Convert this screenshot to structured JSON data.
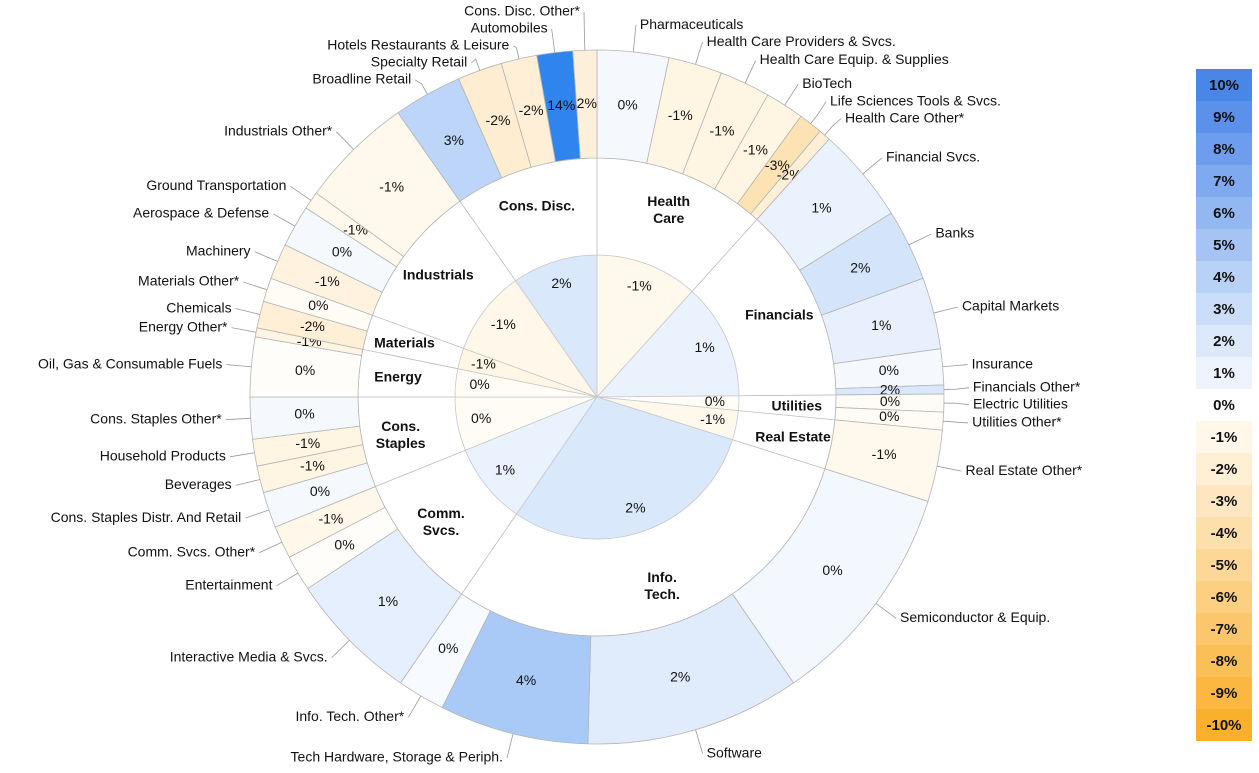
{
  "chart_data": {
    "type": "sunburst",
    "sectors": [
      {
        "name": "Health\nCare",
        "value": -1,
        "value_label": "-1%",
        "color": "#fff8ec",
        "industries": [
          {
            "name": "Pharmaceuticals",
            "value": 0,
            "value_label": "0%",
            "weight": 12,
            "color": "#f5f9fe"
          },
          {
            "name": "Health Care Providers & Svcs.",
            "value": -1,
            "value_label": "-1%",
            "weight": 9,
            "color": "#fff5e3"
          },
          {
            "name": "Health Care Equip. & Supplies",
            "value": -1,
            "value_label": "-1%",
            "weight": 8.5,
            "color": "#fff5e3"
          },
          {
            "name": "BioTech",
            "value": -1,
            "value_label": "-1%",
            "weight": 6.5,
            "color": "#fff5e3"
          },
          {
            "name": "Life Sciences Tools & Svcs.",
            "value": -3,
            "value_label": "-3%",
            "weight": 4,
            "color": "#fde3b3"
          },
          {
            "name": "Health Care Other*",
            "value": -2,
            "value_label": "-2%",
            "weight": 2,
            "color": "#feefd6"
          }
        ]
      },
      {
        "name": "Financials",
        "value": 1,
        "value_label": "1%",
        "color": "#eaf2fd",
        "industries": [
          {
            "name": "Financial Svcs.",
            "value": 1,
            "value_label": "1%",
            "weight": 16,
            "color": "#eaf2fd"
          },
          {
            "name": "Banks",
            "value": 2,
            "value_label": "2%",
            "weight": 12,
            "color": "#d3e4fb"
          },
          {
            "name": "Capital Markets",
            "value": 1,
            "value_label": "1%",
            "weight": 12,
            "color": "#e8f0fd"
          },
          {
            "name": "Insurance",
            "value": 0,
            "value_label": "0%",
            "weight": 6,
            "color": "#f5f9fe"
          },
          {
            "name": "Financials Other*",
            "value": 2,
            "value_label": "2%",
            "weight": 1.5,
            "color": "#dae8fc"
          }
        ]
      },
      {
        "name": "Utilities",
        "value": 0,
        "value_label": "0%",
        "color": "#fffdf8",
        "industries": [
          {
            "name": "Electric Utilities",
            "value": 0,
            "value_label": "0%",
            "weight": 3,
            "color": "#fffcf6"
          },
          {
            "name": "Utilities Other*",
            "value": 0,
            "value_label": "0%",
            "weight": 3,
            "color": "#fffcf6"
          }
        ]
      },
      {
        "name": "Real Estate",
        "value": -1,
        "value_label": "-1%",
        "color": "#fff8ec",
        "industries": [
          {
            "name": "Real Estate Other*",
            "value": -1,
            "value_label": "-1%",
            "weight": 12,
            "color": "#fff8ec"
          }
        ]
      },
      {
        "name": "Info.\nTech.",
        "value": 2,
        "value_label": "2%",
        "color": "#dae8fc",
        "industries": [
          {
            "name": "Semiconductor & Equip.",
            "value": 0,
            "value_label": "0%",
            "weight": 38,
            "color": "#f3f7fe"
          },
          {
            "name": "Software",
            "value": 2,
            "value_label": "2%",
            "weight": 36,
            "color": "#e0ebfc"
          },
          {
            "name": "Tech Hardware, Storage & Periph.",
            "value": 4,
            "value_label": "4%",
            "weight": 25,
            "color": "#a9c9f7"
          },
          {
            "name": "Info. Tech. Other*",
            "value": 0,
            "value_label": "0%",
            "weight": 8,
            "color": "#f7fafe"
          }
        ]
      },
      {
        "name": "Comm.\nSvcs.",
        "value": 1,
        "value_label": "1%",
        "color": "#eaf2fd",
        "industries": [
          {
            "name": "Interactive Media & Svcs.",
            "value": 1,
            "value_label": "1%",
            "weight": 22,
            "color": "#e6effd"
          },
          {
            "name": "Entertainment",
            "value": 0,
            "value_label": "0%",
            "weight": 6,
            "color": "#fffdf9"
          },
          {
            "name": "Comm. Svcs. Other*",
            "value": -1,
            "value_label": "-1%",
            "weight": 5.5,
            "color": "#fff7ea"
          }
        ]
      },
      {
        "name": "Cons.\nStaples",
        "value": 0,
        "value_label": "0%",
        "color": "#fffcf5",
        "industries": [
          {
            "name": "Cons. Staples Distr. And Retail",
            "value": 0,
            "value_label": "0%",
            "weight": 6,
            "color": "#f5f9fe"
          },
          {
            "name": "Beverages",
            "value": -1,
            "value_label": "-1%",
            "weight": 4.5,
            "color": "#fff5e3"
          },
          {
            "name": "Household Products",
            "value": -1,
            "value_label": "-1%",
            "weight": 4.5,
            "color": "#fff5e3"
          },
          {
            "name": "Cons. Staples Other*",
            "value": 0,
            "value_label": "0%",
            "weight": 7,
            "color": "#f5f9fe"
          }
        ]
      },
      {
        "name": "Energy",
        "value": 0,
        "value_label": "0%",
        "color": "#fffcf6",
        "industries": [
          {
            "name": "Oil, Gas & Consumable Fuels",
            "value": 0,
            "value_label": "0%",
            "weight": 10,
            "color": "#fffdf9"
          },
          {
            "name": "Energy Other*",
            "value": -1,
            "value_label": "-1%",
            "weight": 1.5,
            "color": "#fff5e3"
          }
        ]
      },
      {
        "name": "Materials",
        "value": -1,
        "value_label": "-1%",
        "color": "#fff6e6",
        "industries": [
          {
            "name": "Chemicals",
            "value": -2,
            "value_label": "-2%",
            "weight": 4.5,
            "color": "#feefd6"
          },
          {
            "name": "Materials Other*",
            "value": 0,
            "value_label": "0%",
            "weight": 4,
            "color": "#fffcf6"
          }
        ]
      },
      {
        "name": "Industrials",
        "value": -1,
        "value_label": "-1%",
        "color": "#fff7ea",
        "industries": [
          {
            "name": "Machinery",
            "value": -1,
            "value_label": "-1%",
            "weight": 6,
            "color": "#fff3df"
          },
          {
            "name": "Aerospace & Defense",
            "value": 0,
            "value_label": "0%",
            "weight": 7,
            "color": "#f5f9fe"
          },
          {
            "name": "Ground Transportation",
            "value": -1,
            "value_label": "-1%",
            "weight": 3,
            "color": "#fff8ec"
          },
          {
            "name": "Industrials Other*",
            "value": -1,
            "value_label": "-1%",
            "weight": 19,
            "color": "#fff8ec"
          }
        ]
      },
      {
        "name": "Cons. Disc.",
        "value": 2,
        "value_label": "2%",
        "color": "#dae8fc",
        "industries": [
          {
            "name": "Broadline Retail",
            "value": 3,
            "value_label": "3%",
            "weight": 11.5,
            "color": "#bcd5f9"
          },
          {
            "name": "Specialty Retail",
            "value": -2,
            "value_label": "-2%",
            "weight": 7.5,
            "color": "#feedd0"
          },
          {
            "name": "Hotels Restaurants & Leisure",
            "value": -2,
            "value_label": "-2%",
            "weight": 6,
            "color": "#feefd6"
          },
          {
            "name": "Automobiles",
            "value": 14,
            "value_label": "14%",
            "weight": 6,
            "color": "#2f84ee"
          },
          {
            "name": "Cons. Disc. Other*",
            "value": 2,
            "value_label": "2%",
            "weight": 4,
            "color": "#fdf0db"
          }
        ]
      }
    ],
    "legend": [
      {
        "value": 10,
        "label": "10%",
        "color": "#4a86e8"
      },
      {
        "value": 9,
        "label": "9%",
        "color": "#5b91ea"
      },
      {
        "value": 8,
        "label": "8%",
        "color": "#6d9dec"
      },
      {
        "value": 7,
        "label": "7%",
        "color": "#80aaef"
      },
      {
        "value": 6,
        "label": "6%",
        "color": "#93b7f1"
      },
      {
        "value": 5,
        "label": "5%",
        "color": "#a5c4f4"
      },
      {
        "value": 4,
        "label": "4%",
        "color": "#b8d1f6"
      },
      {
        "value": 3,
        "label": "3%",
        "color": "#cadef9"
      },
      {
        "value": 2,
        "label": "2%",
        "color": "#dce9fb"
      },
      {
        "value": 1,
        "label": "1%",
        "color": "#eef4fd"
      },
      {
        "value": 0,
        "label": "0%",
        "color": "#ffffff"
      },
      {
        "value": -1,
        "label": "-1%",
        "color": "#fff7ea"
      },
      {
        "value": -2,
        "label": "-2%",
        "color": "#feefd5"
      },
      {
        "value": -3,
        "label": "-3%",
        "color": "#fee7c0"
      },
      {
        "value": -4,
        "label": "-4%",
        "color": "#fddfab"
      },
      {
        "value": -5,
        "label": "-5%",
        "color": "#fdd796"
      },
      {
        "value": -6,
        "label": "-6%",
        "color": "#fccf81"
      },
      {
        "value": -7,
        "label": "-7%",
        "color": "#fcc76c"
      },
      {
        "value": -8,
        "label": "-8%",
        "color": "#fbbf57"
      },
      {
        "value": -9,
        "label": "-9%",
        "color": "#fbb742"
      },
      {
        "value": -10,
        "label": "-10%",
        "color": "#fab02d"
      }
    ]
  }
}
